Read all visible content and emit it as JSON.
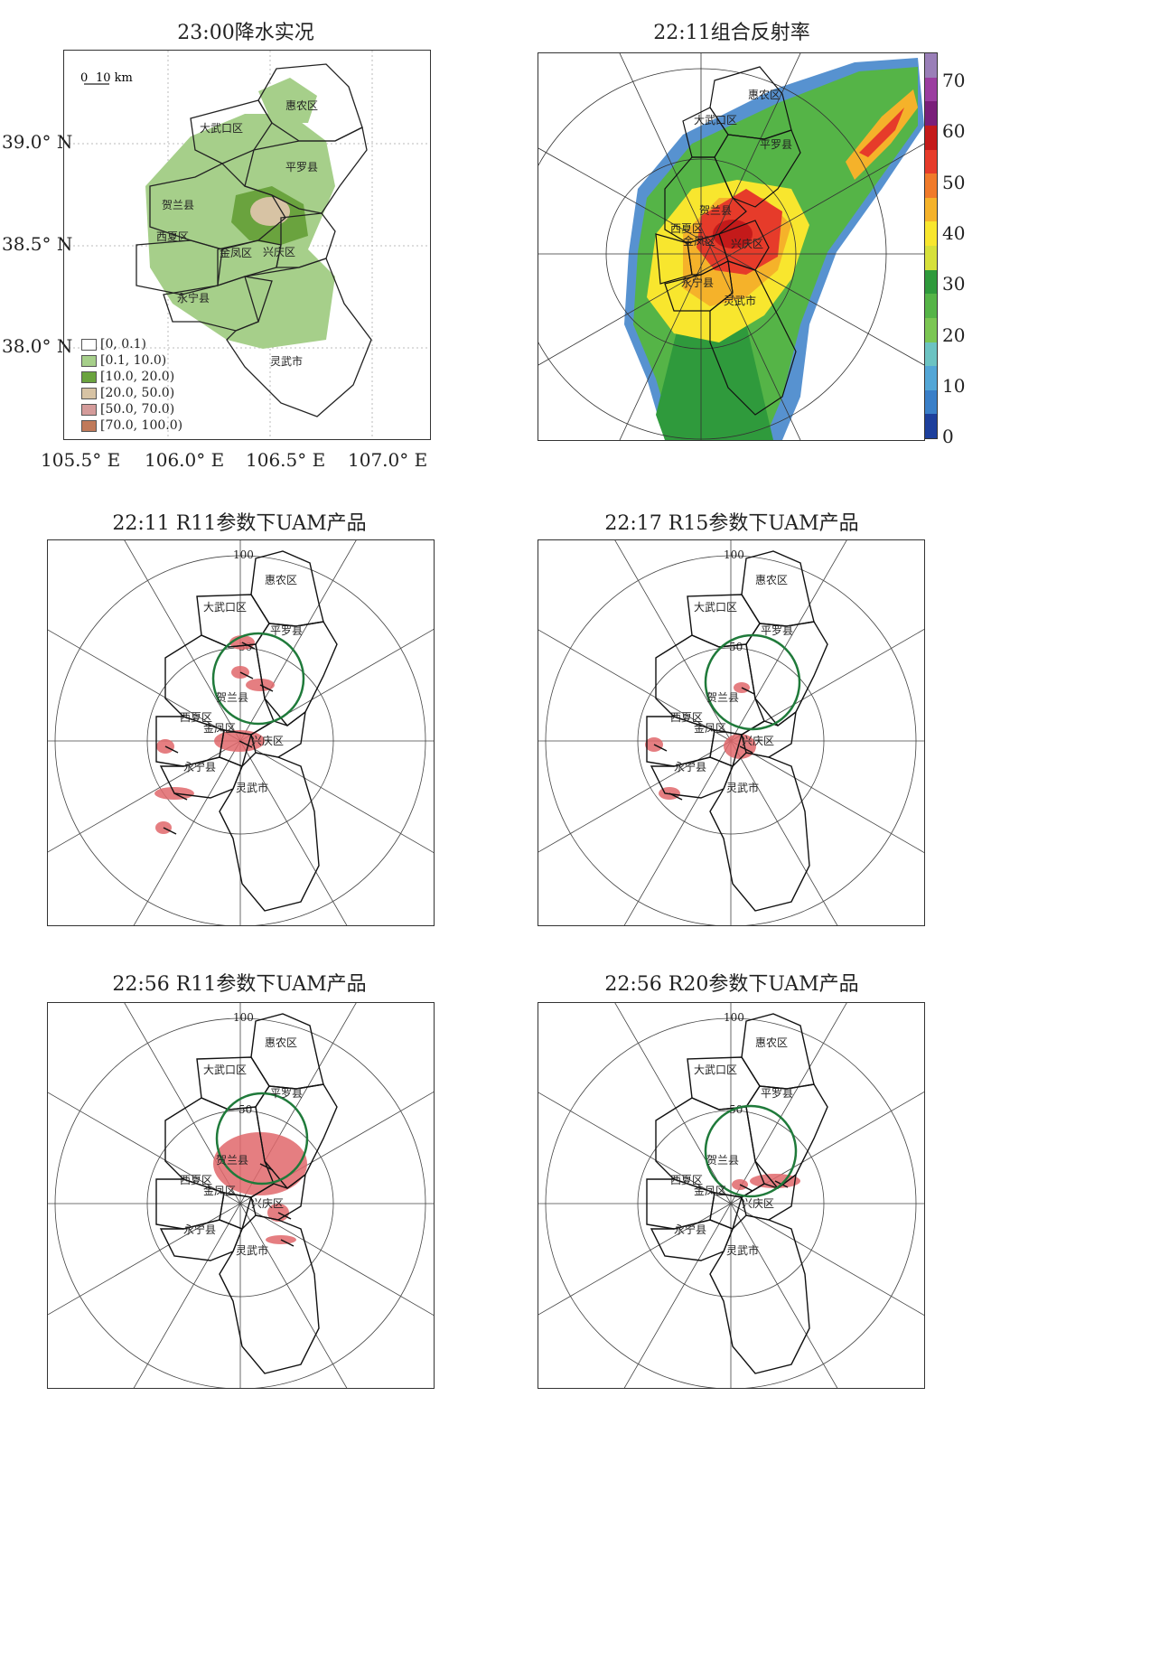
{
  "panel1": {
    "title": "23:00降水实况",
    "scale_bar": "0 10 km",
    "lat_labels": [
      "39.0° N",
      "38.5° N",
      "38.0° N"
    ],
    "lon_labels": [
      "105.5° E",
      "106.0° E",
      "106.5° E",
      "107.0° E"
    ],
    "legend": [
      {
        "label": "[0, 0.1)",
        "color": "#ffffff"
      },
      {
        "label": "[0.1, 10.0)",
        "color": "#a6cf8a"
      },
      {
        "label": "[10.0, 20.0)",
        "color": "#6aa33e"
      },
      {
        "label": "[20.0, 50.0)",
        "color": "#d7c3a4"
      },
      {
        "label": "[50.0, 70.0)",
        "color": "#d49b9a"
      },
      {
        "label": "[70.0, 100.0)",
        "color": "#c07a5a"
      }
    ]
  },
  "panel2": {
    "title": "22:11组合反射率",
    "colorbar_ticks": [
      "70",
      "60",
      "50",
      "40",
      "30",
      "20",
      "10",
      "0"
    ],
    "colorbar_colors": [
      "#9a7fb8",
      "#9b3ea0",
      "#7a1f7a",
      "#c41a1a",
      "#e63b2a",
      "#f07a2a",
      "#f5b22a",
      "#f8e62e",
      "#d6e03a",
      "#2f9a3c",
      "#55b447",
      "#7bc653",
      "#6cc3c2",
      "#53a6d6",
      "#3a7fc8",
      "#1d3f9c"
    ]
  },
  "panel3": {
    "title": "22:11 R11参数下UAM产品"
  },
  "panel4": {
    "title": "22:17 R15参数下UAM产品"
  },
  "panel5": {
    "title": "22:56 R11参数下UAM产品"
  },
  "panel6": {
    "title": "22:56 R20参数下UAM产品"
  },
  "ring_labels": {
    "r100": "100",
    "r50": "50"
  },
  "districts": [
    "惠农区",
    "大武口区",
    "平罗县",
    "贺兰县",
    "西夏区",
    "金凤区",
    "兴庆区",
    "永宁县",
    "灵武市"
  ]
}
